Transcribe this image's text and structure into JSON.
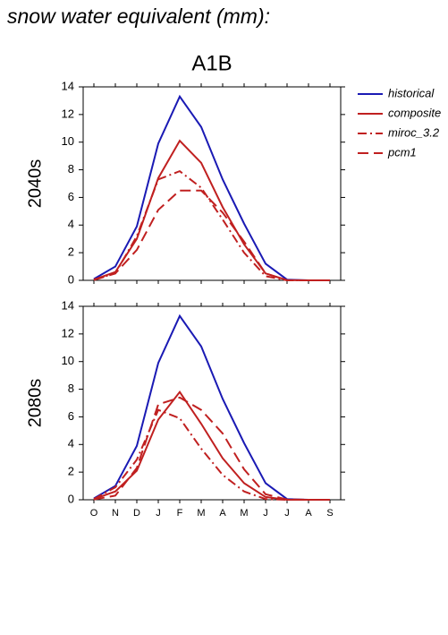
{
  "title": "snow water equivalent (mm):",
  "scenario": "A1B",
  "chart_data": [
    {
      "type": "line",
      "ylabel": "2040s",
      "legend": "right",
      "categories": [
        null,
        null,
        null,
        null,
        null,
        null,
        null,
        null,
        null,
        null,
        null,
        null
      ],
      "ylim": [
        0,
        14
      ],
      "yticks": [
        0,
        2,
        4,
        6,
        8,
        10,
        12,
        14
      ],
      "series": [
        {
          "name": "historical",
          "color": "#1a1ab4",
          "dash": "solid",
          "values": [
            0.1,
            1.0,
            3.9,
            9.9,
            13.3,
            11.1,
            7.3,
            4.1,
            1.2,
            0.05,
            0,
            0
          ]
        },
        {
          "name": "composite",
          "color": "#c02020",
          "dash": "solid",
          "values": [
            0.05,
            0.6,
            3.0,
            7.4,
            10.1,
            8.5,
            5.3,
            2.6,
            0.5,
            0.02,
            0,
            0
          ]
        },
        {
          "name": "miroc_3.2",
          "color": "#c02020",
          "dash": "dashdot",
          "values": [
            0.05,
            0.5,
            3.2,
            7.3,
            7.9,
            6.7,
            4.4,
            2.0,
            0.3,
            0,
            0,
            0
          ]
        },
        {
          "name": "pcm1",
          "color": "#c02020",
          "dash": "dash",
          "values": [
            0.02,
            0.5,
            2.2,
            5.1,
            6.5,
            6.5,
            4.9,
            2.8,
            0.5,
            0,
            0,
            0
          ]
        }
      ]
    },
    {
      "type": "line",
      "ylabel": "2080s",
      "categories": [
        "O",
        "N",
        "D",
        "J",
        "F",
        "M",
        "A",
        "M",
        "J",
        "J",
        "A",
        "S"
      ],
      "ylim": [
        0,
        14
      ],
      "yticks": [
        0,
        2,
        4,
        6,
        8,
        10,
        12,
        14
      ],
      "series": [
        {
          "color": "#1a1ab4",
          "dash": "solid",
          "values": [
            0.1,
            1.0,
            3.9,
            9.9,
            13.3,
            11.1,
            7.3,
            4.1,
            1.2,
            0.05,
            0,
            0
          ]
        },
        {
          "color": "#c02020",
          "dash": "solid",
          "values": [
            0.05,
            0.6,
            2.1,
            5.8,
            7.8,
            5.5,
            3.0,
            1.2,
            0.2,
            0,
            0,
            0
          ]
        },
        {
          "color": "#c02020",
          "dash": "dashdot",
          "values": [
            0.05,
            0.9,
            2.9,
            6.5,
            5.9,
            3.7,
            1.8,
            0.6,
            0.05,
            0,
            0,
            0
          ]
        },
        {
          "color": "#c02020",
          "dash": "dash",
          "values": [
            0.02,
            0.3,
            2.3,
            6.9,
            7.4,
            6.5,
            4.8,
            2.2,
            0.4,
            0.02,
            0,
            0
          ]
        }
      ]
    }
  ]
}
